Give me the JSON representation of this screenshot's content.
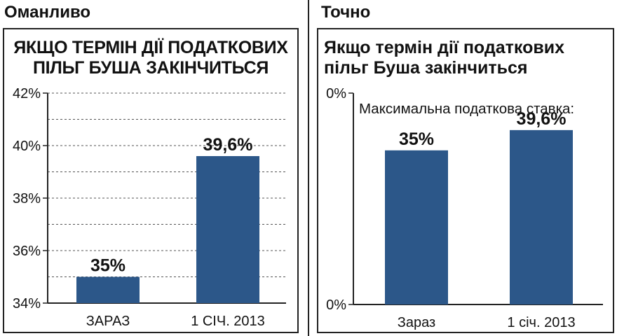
{
  "left_panel": {
    "heading": "Оманливо",
    "title_line1": "ЯКЩО ТЕРМІН ДІЇ ПОДАТКОВИХ",
    "title_line2": "ПІЛЬГ БУША ЗАКІНЧИТЬСЯ"
  },
  "right_panel": {
    "heading": "Точно",
    "title_line1": "Якщо термін дії податкових",
    "title_line2": "пільг Буша закінчиться",
    "annotation": "Максимальна податкова ставка:"
  },
  "chart_data": [
    {
      "type": "bar",
      "title": "ЯКЩО ТЕРМІН ДІЇ ПОДАТКОВИХ ПІЛЬГ БУША ЗАКІНЧИТЬСЯ",
      "categories": [
        "ЗАРАЗ",
        "1 СІЧ. 2013"
      ],
      "values": [
        35,
        39.6
      ],
      "data_labels": [
        "35%",
        "39,6%"
      ],
      "ylim": [
        34,
        42
      ],
      "y_ticks": [
        34,
        36,
        38,
        40,
        42
      ],
      "y_tick_labels": [
        "34%",
        "36%",
        "38%",
        "40%",
        "42%"
      ],
      "grid": true,
      "bar_color": "#2c5789"
    },
    {
      "type": "bar",
      "title": "Якщо термін дії податкових пільг Буша закінчиться",
      "categories": [
        "Зараз",
        "1 січ. 2013"
      ],
      "values": [
        35,
        39.6
      ],
      "data_labels": [
        "35%",
        "39,6%"
      ],
      "y_tick_labels": [
        "0%",
        "0%"
      ],
      "grid": false,
      "bar_color": "#2c5789"
    }
  ]
}
